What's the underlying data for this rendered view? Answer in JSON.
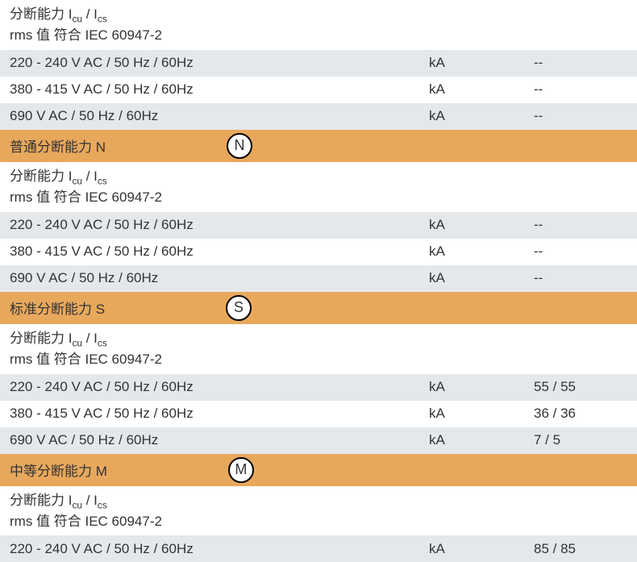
{
  "header_line1_prefix": "分断能力 I",
  "header_line1_sub1": "cu",
  "header_line1_mid": " / I",
  "header_line1_sub2": "cs",
  "header_line2": "rms 值 符合 IEC 60947-2",
  "voltage_rows": {
    "v220": "220 - 240 V AC / 50 Hz / 60Hz",
    "v380": "380 - 415 V AC / 50 Hz / 60Hz",
    "v690": "690 V AC / 50 Hz / 60Hz"
  },
  "unit_ka": "kA",
  "dash": "--",
  "section_n": {
    "title": "普通分断能力 N",
    "icon": "N"
  },
  "section_s": {
    "title": "标准分断能力 S",
    "icon": "S",
    "values": {
      "v220": "55 / 55",
      "v380": "36 / 36",
      "v690": "7 / 5"
    }
  },
  "section_m": {
    "title": "中等分断能力 M",
    "icon": "M",
    "values": {
      "v220": "85 / 85"
    }
  },
  "colors": {
    "gray_row": "#e5e8eb",
    "white_row": "#ffffff",
    "orange_row": "#e8a85c",
    "text": "#333333"
  }
}
